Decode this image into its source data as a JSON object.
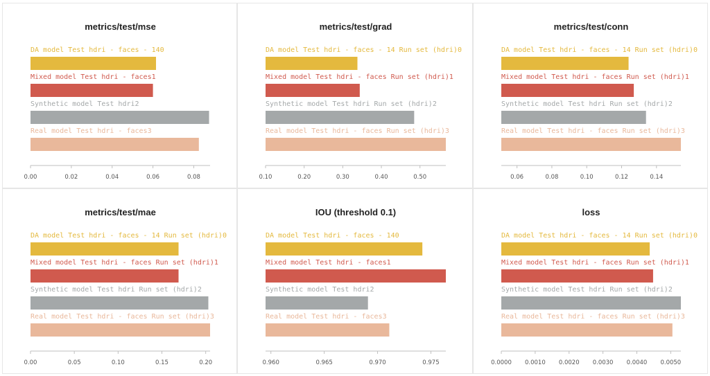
{
  "chart_data": [
    {
      "type": "bar",
      "orientation": "horizontal",
      "title": "metrics/test/mse",
      "categories": [
        "DA model Test hdri - faces - 140",
        "Mixed model Test hdri - faces1",
        "Synthetic model Test hdri2",
        "Real model Test hdri - faces3"
      ],
      "values": [
        0.0615,
        0.06,
        0.0875,
        0.0825
      ],
      "colors": [
        "#e4b93e",
        "#d05a4e",
        "#a4a8a9",
        "#e9b89b"
      ],
      "xlim": [
        0,
        0.088
      ],
      "xticks": [
        0,
        0.02,
        0.04,
        0.06,
        0.08
      ],
      "xticklabels": [
        "0.00",
        "0.02",
        "0.04",
        "0.06",
        "0.08"
      ]
    },
    {
      "type": "bar",
      "orientation": "horizontal",
      "title": "metrics/test/grad",
      "categories": [
        "DA model Test hdri - faces - 14 Run set (hdri)0",
        "Mixed model Test hdri - faces Run set (hdri)1",
        "Synthetic model Test hdri Run set (hdri)2",
        "Real model Test hdri - faces Run set (hdri)3"
      ],
      "values": [
        0.338,
        0.344,
        0.485,
        0.567
      ],
      "colors": [
        "#e4b93e",
        "#d05a4e",
        "#a4a8a9",
        "#e9b89b"
      ],
      "xlim": [
        0.1,
        0.567
      ],
      "xticks": [
        0.1,
        0.2,
        0.3,
        0.4,
        0.5
      ],
      "xticklabels": [
        "0.10",
        "0.20",
        "0.30",
        "0.40",
        "0.50"
      ]
    },
    {
      "type": "bar",
      "orientation": "horizontal",
      "title": "metrics/test/conn",
      "categories": [
        "DA model Test hdri - faces - 14 Run set (hdri)0",
        "Mixed model Test hdri - faces Run set (hdri)1",
        "Synthetic model Test hdri Run set (hdri)2",
        "Real model Test hdri - faces Run set (hdri)3"
      ],
      "values": [
        0.124,
        0.127,
        0.134,
        0.154
      ],
      "colors": [
        "#e4b93e",
        "#d05a4e",
        "#a4a8a9",
        "#e9b89b"
      ],
      "xlim": [
        0.051,
        0.154
      ],
      "xticks": [
        0.06,
        0.08,
        0.1,
        0.12,
        0.14
      ],
      "xticklabels": [
        "0.06",
        "0.08",
        "0.10",
        "0.12",
        "0.14"
      ]
    },
    {
      "type": "bar",
      "orientation": "horizontal",
      "title": "metrics/test/mae",
      "categories": [
        "DA model Test hdri - faces - 14 Run set (hdri)0",
        "Mixed model Test hdri - faces Run set (hdri)1",
        "Synthetic model Test hdri Run set (hdri)2",
        "Real model Test hdri - faces Run set (hdri)3"
      ],
      "values": [
        0.169,
        0.169,
        0.203,
        0.205
      ],
      "colors": [
        "#e4b93e",
        "#d05a4e",
        "#a4a8a9",
        "#e9b89b"
      ],
      "xlim": [
        0,
        0.205
      ],
      "xticks": [
        0,
        0.05,
        0.1,
        0.15,
        0.2
      ],
      "xticklabels": [
        "0.00",
        "0.05",
        "0.10",
        "0.15",
        "0.20"
      ]
    },
    {
      "type": "bar",
      "orientation": "horizontal",
      "title": "IOU (threshold 0.1)",
      "categories": [
        "DA model Test hdri - faces - 140",
        "Mixed model Test hdri - faces1",
        "Synthetic model Test hdri2",
        "Real model Test hdri - faces3"
      ],
      "values": [
        0.9742,
        0.9764,
        0.9691,
        0.9711
      ],
      "colors": [
        "#e4b93e",
        "#d05a4e",
        "#a4a8a9",
        "#e9b89b"
      ],
      "xlim": [
        0.9595,
        0.9764
      ],
      "xticks": [
        0.96,
        0.965,
        0.97,
        0.975
      ],
      "xticklabels": [
        "0.960",
        "0.965",
        "0.970",
        "0.975"
      ]
    },
    {
      "type": "bar",
      "orientation": "horizontal",
      "title": "loss",
      "categories": [
        "DA model Test hdri - faces - 14 Run set (hdri)0",
        "Mixed model Test hdri - faces Run set (hdri)1",
        "Synthetic model Test hdri Run set (hdri)2",
        "Real model Test hdri - faces Run set (hdri)3"
      ],
      "values": [
        0.00438,
        0.00448,
        0.0053,
        0.00505
      ],
      "colors": [
        "#e4b93e",
        "#d05a4e",
        "#a4a8a9",
        "#e9b89b"
      ],
      "xlim": [
        0,
        0.0053
      ],
      "xticks": [
        0,
        0.001,
        0.002,
        0.003,
        0.004,
        0.005
      ],
      "xticklabels": [
        "0.0000",
        "0.0010",
        "0.0020",
        "0.0030",
        "0.0040",
        "0.0050"
      ]
    }
  ]
}
